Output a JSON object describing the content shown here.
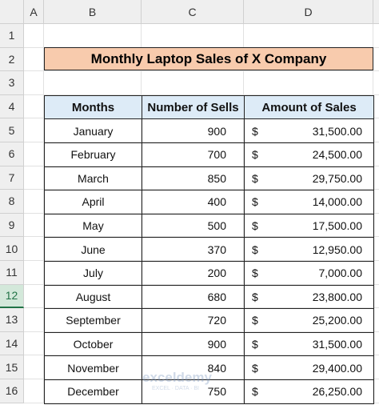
{
  "sheet": {
    "columns": [
      "A",
      "B",
      "C",
      "D"
    ],
    "rows": [
      1,
      2,
      3,
      4,
      5,
      6,
      7,
      8,
      9,
      10,
      11,
      12,
      13,
      14,
      15,
      16
    ],
    "selected_row": 12
  },
  "title": "Monthly Laptop Sales of X Company",
  "table": {
    "header": [
      "Months",
      "Number of Sells",
      "Amount of Sales"
    ],
    "rows": [
      [
        "January",
        900,
        "$",
        "31,500.00"
      ],
      [
        "February",
        700,
        "$",
        "24,500.00"
      ],
      [
        "March",
        850,
        "$",
        "29,750.00"
      ],
      [
        "April",
        400,
        "$",
        "14,000.00"
      ],
      [
        "May",
        500,
        "$",
        "17,500.00"
      ],
      [
        "June",
        370,
        "$",
        "12,950.00"
      ],
      [
        "July",
        200,
        "$",
        "7,000.00"
      ],
      [
        "August",
        680,
        "$",
        "23,800.00"
      ],
      [
        "September",
        720,
        "$",
        "25,200.00"
      ],
      [
        "October",
        900,
        "$",
        "31,500.00"
      ],
      [
        "November",
        840,
        "$",
        "29,400.00"
      ],
      [
        "December",
        750,
        "$",
        "26,250.00"
      ]
    ]
  },
  "watermark": {
    "name": "exceldemy",
    "tagline": "EXCEL · DATA · BI"
  }
}
